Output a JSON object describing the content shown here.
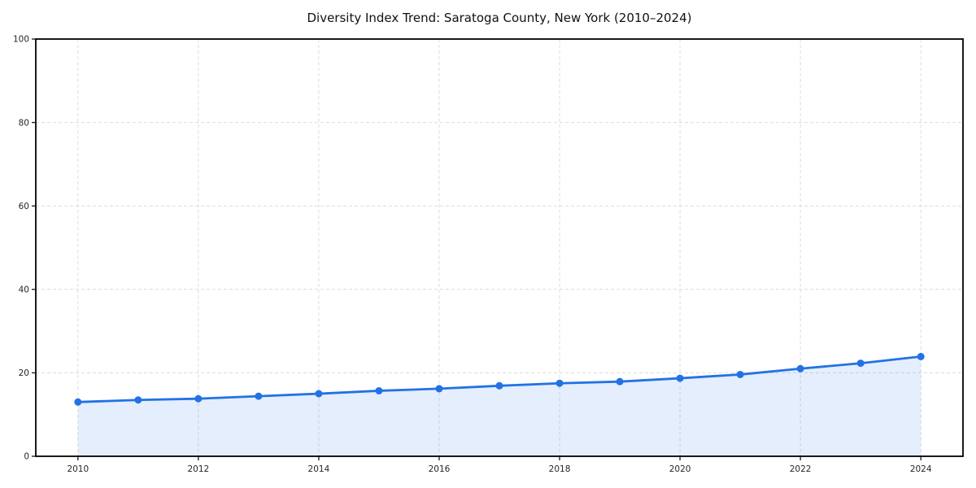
{
  "chart_data": {
    "type": "line",
    "title": "Diversity Index Trend: Saratoga County, New York (2010–2024)",
    "x": [
      2010,
      2011,
      2012,
      2013,
      2014,
      2015,
      2016,
      2017,
      2018,
      2019,
      2020,
      2021,
      2022,
      2023,
      2024
    ],
    "series": [
      {
        "name": "Diversity Index",
        "values": [
          13.0,
          13.5,
          13.8,
          14.4,
          15.0,
          15.7,
          16.2,
          16.9,
          17.5,
          17.9,
          18.7,
          19.6,
          21.0,
          22.3,
          23.9
        ]
      }
    ],
    "xlabel": "",
    "ylabel": "",
    "xlim": [
      2009.3,
      2024.7
    ],
    "ylim": [
      0,
      100
    ],
    "xticks": [
      2010,
      2012,
      2014,
      2016,
      2018,
      2020,
      2022,
      2024
    ],
    "yticks": [
      0,
      20,
      40,
      60,
      80,
      100
    ],
    "grid": true,
    "legend": false,
    "area_fill": true,
    "line_color": "#2272e4",
    "fill_opacity": 0.12,
    "grid_color": "#dcdcdc",
    "spine_color": "#000000",
    "tick_label_color": "#262626",
    "marker": "circle"
  }
}
